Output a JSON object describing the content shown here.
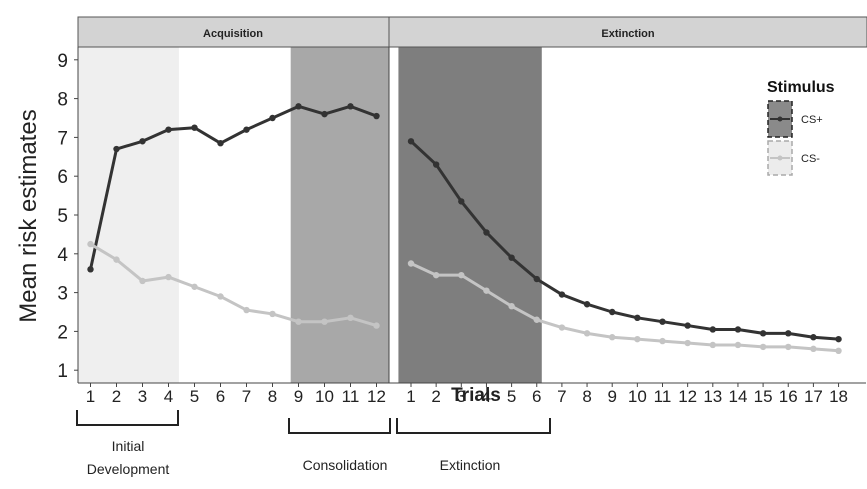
{
  "chart_data": {
    "type": "line",
    "ylabel": "Mean risk estimates",
    "xlabel": "Trials",
    "ylim": [
      1,
      9
    ],
    "yticks": [
      1,
      2,
      3,
      4,
      5,
      6,
      7,
      8,
      9
    ],
    "grid": false,
    "legend": {
      "title": "Stimulus",
      "placement": "right",
      "entries": [
        "CS+",
        "CS-"
      ]
    },
    "colors": {
      "cs_plus": "#333333",
      "cs_minus": "#c4c4c4",
      "strip": "#d3d3d3",
      "initial_development_shade": "#efefef",
      "consolidation_shade": "#a8a8a8",
      "extinction_shade": "#7e7e7e"
    },
    "panels": [
      {
        "strip_label": "Acquisition",
        "trials": [
          1,
          2,
          3,
          4,
          5,
          6,
          7,
          8,
          9,
          10,
          11,
          12
        ],
        "series": [
          {
            "name": "CS+",
            "values": [
              3.6,
              6.7,
              6.9,
              7.2,
              7.25,
              6.85,
              7.2,
              7.5,
              7.8,
              7.6,
              7.8,
              7.55
            ]
          },
          {
            "name": "CS-",
            "values": [
              4.25,
              3.85,
              3.3,
              3.4,
              3.15,
              2.9,
              2.55,
              2.45,
              2.25,
              2.25,
              2.35,
              2.15
            ]
          }
        ],
        "shaded_regions": [
          {
            "trial_from": 0.5,
            "trial_to": 4.4,
            "shade": "light"
          },
          {
            "trial_from": 8.7,
            "trial_to": 12.5,
            "shade": "medium"
          }
        ]
      },
      {
        "strip_label": "Extinction",
        "trials": [
          1,
          2,
          3,
          4,
          5,
          6,
          7,
          8,
          9,
          10,
          11,
          12,
          13,
          14,
          15,
          16,
          17,
          18
        ],
        "series": [
          {
            "name": "CS+",
            "values": [
              6.9,
              6.3,
              5.35,
              4.55,
              3.9,
              3.35,
              2.95,
              2.7,
              2.5,
              2.35,
              2.25,
              2.15,
              2.05,
              2.05,
              1.95,
              1.95,
              1.85,
              1.8
            ]
          },
          {
            "name": "CS-",
            "values": [
              3.75,
              3.45,
              3.45,
              3.05,
              2.65,
              2.3,
              2.1,
              1.95,
              1.85,
              1.8,
              1.75,
              1.7,
              1.65,
              1.65,
              1.6,
              1.6,
              1.55,
              1.5
            ]
          }
        ],
        "shaded_regions": [
          {
            "trial_from": 0.5,
            "trial_to": 6.2,
            "shade": "dark"
          }
        ]
      }
    ],
    "phase_brackets": [
      {
        "label_lines": [
          "Initial",
          "Development"
        ]
      },
      {
        "label_lines": [
          "Consolidation"
        ]
      },
      {
        "label_lines": [
          "Extinction"
        ]
      }
    ]
  }
}
